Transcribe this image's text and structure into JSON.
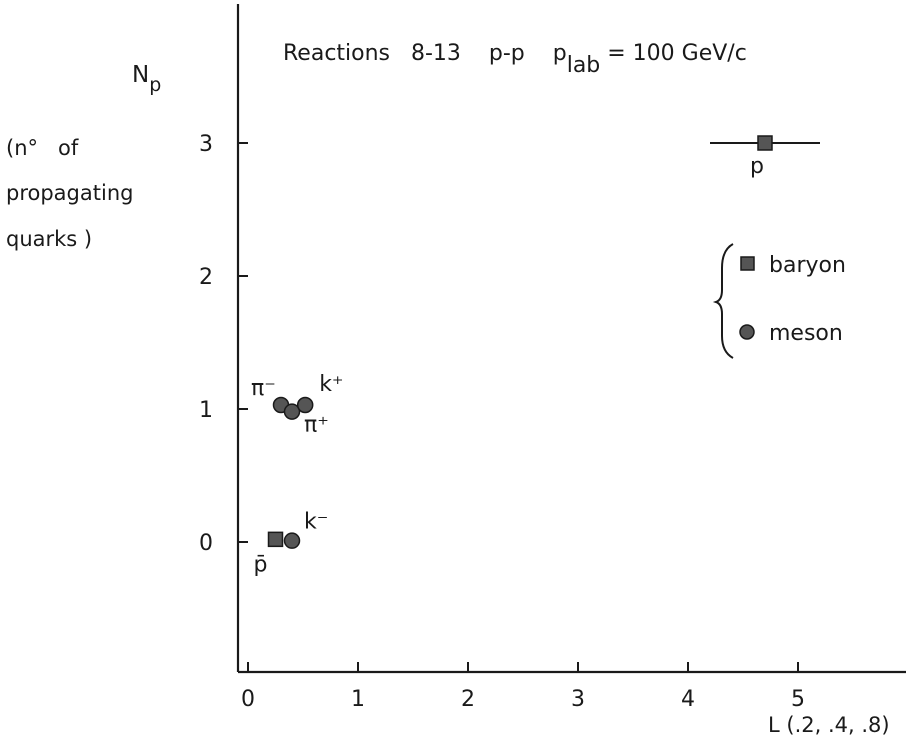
{
  "chart_data": {
    "type": "scatter",
    "title_parts": {
      "prefix": "Reactions   8-13    p-p    p",
      "subscript": "lab",
      "suffix": " = 100  GeV/c"
    },
    "ylabel": {
      "symbol": "N",
      "subscript": "p",
      "line1": "(n°   of",
      "line2": "propagating",
      "line3": "quarks )"
    },
    "xlabel": "L (.2, .4, .8)",
    "xlim": [
      0,
      5.9
    ],
    "ylim": [
      -0.95,
      4.0
    ],
    "x_ticks": [
      0,
      1,
      2,
      3,
      4,
      5
    ],
    "y_ticks": [
      0,
      1,
      2,
      3
    ],
    "grid": false,
    "legend": {
      "position": "right",
      "items": [
        {
          "marker": "square",
          "label": "baryon"
        },
        {
          "marker": "circle",
          "label": "meson"
        }
      ]
    },
    "points": [
      {
        "label": "p",
        "x": 4.7,
        "y": 3.0,
        "marker": "square",
        "xerr": [
          4.2,
          5.2
        ]
      },
      {
        "label": "π⁻",
        "x": 0.3,
        "y": 1.03,
        "marker": "circle"
      },
      {
        "label": "π⁺",
        "x": 0.4,
        "y": 0.98,
        "marker": "circle"
      },
      {
        "label": "k⁺",
        "x": 0.52,
        "y": 1.03,
        "marker": "circle"
      },
      {
        "label": "p̄",
        "x": 0.25,
        "y": 0.02,
        "marker": "square"
      },
      {
        "label": "k⁻",
        "x": 0.4,
        "y": 0.01,
        "marker": "circle"
      }
    ],
    "colors": {
      "ink": "#1a1a1a",
      "marker_fill": "#555555"
    }
  }
}
